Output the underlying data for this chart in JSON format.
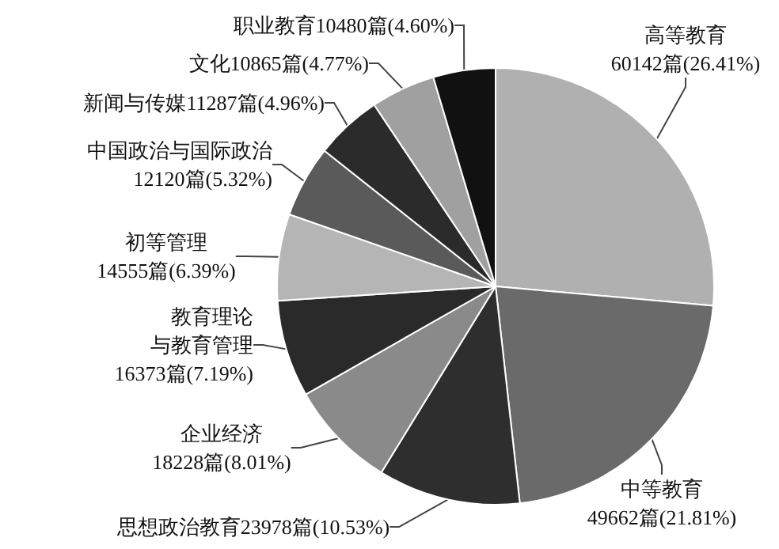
{
  "chart_data": {
    "type": "pie",
    "categories": [
      "高等教育",
      "中等教育",
      "思想政治教育",
      "企业经济",
      "教育理论与教育管理",
      "初等管理",
      "中国政治与国际政治",
      "新闻与传媒",
      "文化",
      "职业教育"
    ],
    "values": [
      60142,
      49662,
      23978,
      18228,
      16373,
      14555,
      12120,
      11287,
      10865,
      10480
    ],
    "value_labels": [
      "60142篇(26.41%)",
      "49662篇(21.81%)",
      "23978篇(10.53%)",
      "18228篇(8.01%)",
      "16373篇(7.19%)",
      "14555篇(6.39%)",
      "12120篇(5.32%)",
      "11287篇(4.96%)",
      "10865篇(4.77%)",
      "10480篇(4.60%)"
    ],
    "colors": [
      "#b0b0b0",
      "#6a6a6a",
      "#2e2e2e",
      "#8a8a8a",
      "#2a2a2a",
      "#b5b5b5",
      "#5a5a5a",
      "#2b2b2b",
      "#a0a0a0",
      "#111111"
    ],
    "legend": false
  }
}
